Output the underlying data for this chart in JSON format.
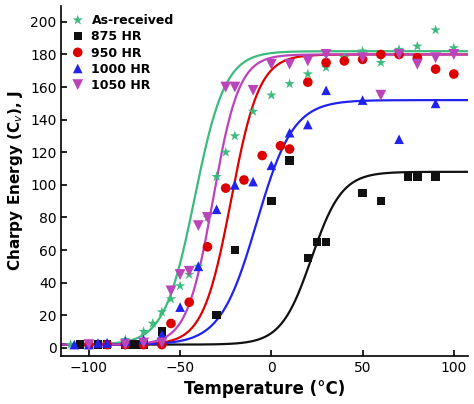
{
  "title": "",
  "xlabel": "Temperature (°C)",
  "ylabel": "Charpy Energy (C$_v$), J",
  "xlim": [
    -115,
    108
  ],
  "ylim": [
    -5,
    210
  ],
  "xticks": [
    -100,
    -50,
    0,
    50,
    100
  ],
  "yticks": [
    0,
    20,
    40,
    60,
    80,
    100,
    120,
    140,
    160,
    180,
    200
  ],
  "series": [
    {
      "label": "As-received",
      "color": "#3dba7e",
      "marker": "*",
      "markersize": 9,
      "scatter_x": [
        -110,
        -100,
        -90,
        -80,
        -70,
        -65,
        -60,
        -55,
        -50,
        -45,
        -40,
        -35,
        -30,
        -25,
        -20,
        -10,
        0,
        10,
        20,
        30,
        40,
        50,
        60,
        70,
        80,
        90,
        100
      ],
      "scatter_y": [
        2,
        2,
        3,
        5,
        10,
        15,
        22,
        30,
        38,
        45,
        50,
        80,
        105,
        120,
        130,
        145,
        155,
        162,
        168,
        172,
        178,
        182,
        175,
        183,
        185,
        195,
        184
      ],
      "curve_T0": -42,
      "curve_upper": 182,
      "curve_lower": 2,
      "curve_k": 0.12
    },
    {
      "label": "875 HR",
      "color": "#111111",
      "marker": "s",
      "markersize": 7,
      "scatter_x": [
        -105,
        -100,
        -95,
        -90,
        -80,
        -75,
        -70,
        -60,
        -30,
        -20,
        0,
        10,
        20,
        25,
        30,
        50,
        60,
        75,
        80,
        90
      ],
      "scatter_y": [
        2,
        2,
        2,
        2,
        2,
        2,
        2,
        10,
        20,
        60,
        90,
        115,
        55,
        65,
        65,
        95,
        90,
        105,
        105,
        105
      ],
      "curve_T0": 22,
      "curve_upper": 108,
      "curve_lower": 2,
      "curve_k": 0.12
    },
    {
      "label": "950 HR",
      "color": "#dd0000",
      "marker": "o",
      "markersize": 8,
      "scatter_x": [
        -100,
        -90,
        -80,
        -70,
        -60,
        -55,
        -45,
        -35,
        -25,
        -15,
        -5,
        5,
        10,
        20,
        30,
        40,
        50,
        60,
        70,
        80,
        90,
        100
      ],
      "scatter_y": [
        2,
        2,
        2,
        2,
        2,
        15,
        28,
        62,
        98,
        103,
        118,
        124,
        122,
        163,
        175,
        176,
        177,
        180,
        180,
        178,
        171,
        168
      ],
      "curve_T0": -22,
      "curve_upper": 180,
      "curve_lower": 2,
      "curve_k": 0.13
    },
    {
      "label": "1000 HR",
      "color": "#2222ee",
      "marker": "^",
      "markersize": 8,
      "scatter_x": [
        -108,
        -100,
        -95,
        -90,
        -80,
        -70,
        -60,
        -50,
        -40,
        -30,
        -20,
        -10,
        0,
        10,
        20,
        30,
        50,
        70,
        90
      ],
      "scatter_y": [
        2,
        2,
        3,
        3,
        4,
        5,
        8,
        25,
        50,
        85,
        100,
        102,
        112,
        132,
        137,
        158,
        152,
        128,
        150
      ],
      "curve_T0": -8,
      "curve_upper": 152,
      "curve_lower": 2,
      "curve_k": 0.1
    },
    {
      "label": "1050 HR",
      "color": "#bb44bb",
      "marker": "v",
      "markersize": 9,
      "scatter_x": [
        -100,
        -80,
        -70,
        -60,
        -55,
        -50,
        -45,
        -40,
        -35,
        -25,
        -20,
        -10,
        0,
        10,
        20,
        30,
        50,
        60,
        70,
        80,
        90,
        100
      ],
      "scatter_y": [
        2,
        2,
        3,
        3,
        35,
        45,
        47,
        75,
        80,
        160,
        160,
        158,
        174,
        174,
        176,
        180,
        178,
        155,
        180,
        174,
        178,
        180
      ],
      "curve_T0": -32,
      "curve_upper": 180,
      "curve_lower": 2,
      "curve_k": 0.14
    }
  ],
  "legend_loc": "upper left",
  "bg_color": "#ffffff"
}
